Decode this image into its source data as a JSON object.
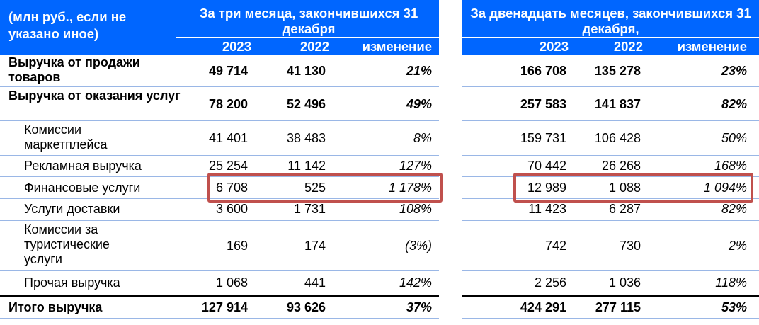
{
  "header": {
    "units_label": "(млн руб., если не указано иное)",
    "group1_title": "За три месяца, закончившихся 31 декабря",
    "group2_title": "За двенадцать месяцев, закончившихся 31 декабря,",
    "columns": [
      "2023",
      "2022",
      "изменение"
    ],
    "header_color": "#0066ff",
    "highlight_color": "#c0504d"
  },
  "rows": [
    {
      "label": "Выручка от продажи товаров",
      "q2023": "49 714",
      "q2022": "41 130",
      "qchg": "21%",
      "y2023": "166 708",
      "y2022": "135 278",
      "ychg": "23%"
    },
    {
      "label": "Выручка от оказания услуг",
      "q2023": "78 200",
      "q2022": "52 496",
      "qchg": "49%",
      "y2023": "257 583",
      "y2022": "141 837",
      "ychg": "82%"
    },
    {
      "label": "Комиссии маркетплейса",
      "q2023": "41 401",
      "q2022": "38 483",
      "qchg": "8%",
      "y2023": "159 731",
      "y2022": "106 428",
      "ychg": "50%"
    },
    {
      "label": "Рекламная выручка",
      "q2023": "25 254",
      "q2022": "11 142",
      "qchg": "127%",
      "y2023": "70 442",
      "y2022": "26 268",
      "ychg": "168%"
    },
    {
      "label": "Финансовые услуги",
      "q2023": "6 708",
      "q2022": "525",
      "qchg": "1 178%",
      "y2023": "12 989",
      "y2022": "1 088",
      "ychg": "1 094%"
    },
    {
      "label": "Услуги доставки",
      "q2023": "3 600",
      "q2022": "1 731",
      "qchg": "108%",
      "y2023": "11 423",
      "y2022": "6 287",
      "ychg": "82%"
    },
    {
      "label": "Комиссии за туристические услуги",
      "q2023": "169",
      "q2022": "174",
      "qchg": "(3%)",
      "y2023": "742",
      "y2022": "730",
      "ychg": "2%"
    },
    {
      "label": "Прочая выручка",
      "q2023": "1 068",
      "q2022": "441",
      "qchg": "142%",
      "y2023": "2 256",
      "y2022": "1 036",
      "ychg": "118%"
    },
    {
      "label": "Итого выручка",
      "q2023": "127 914",
      "q2022": "93 626",
      "qchg": "37%",
      "y2023": "424 291",
      "y2022": "277 115",
      "ychg": "53%"
    }
  ]
}
